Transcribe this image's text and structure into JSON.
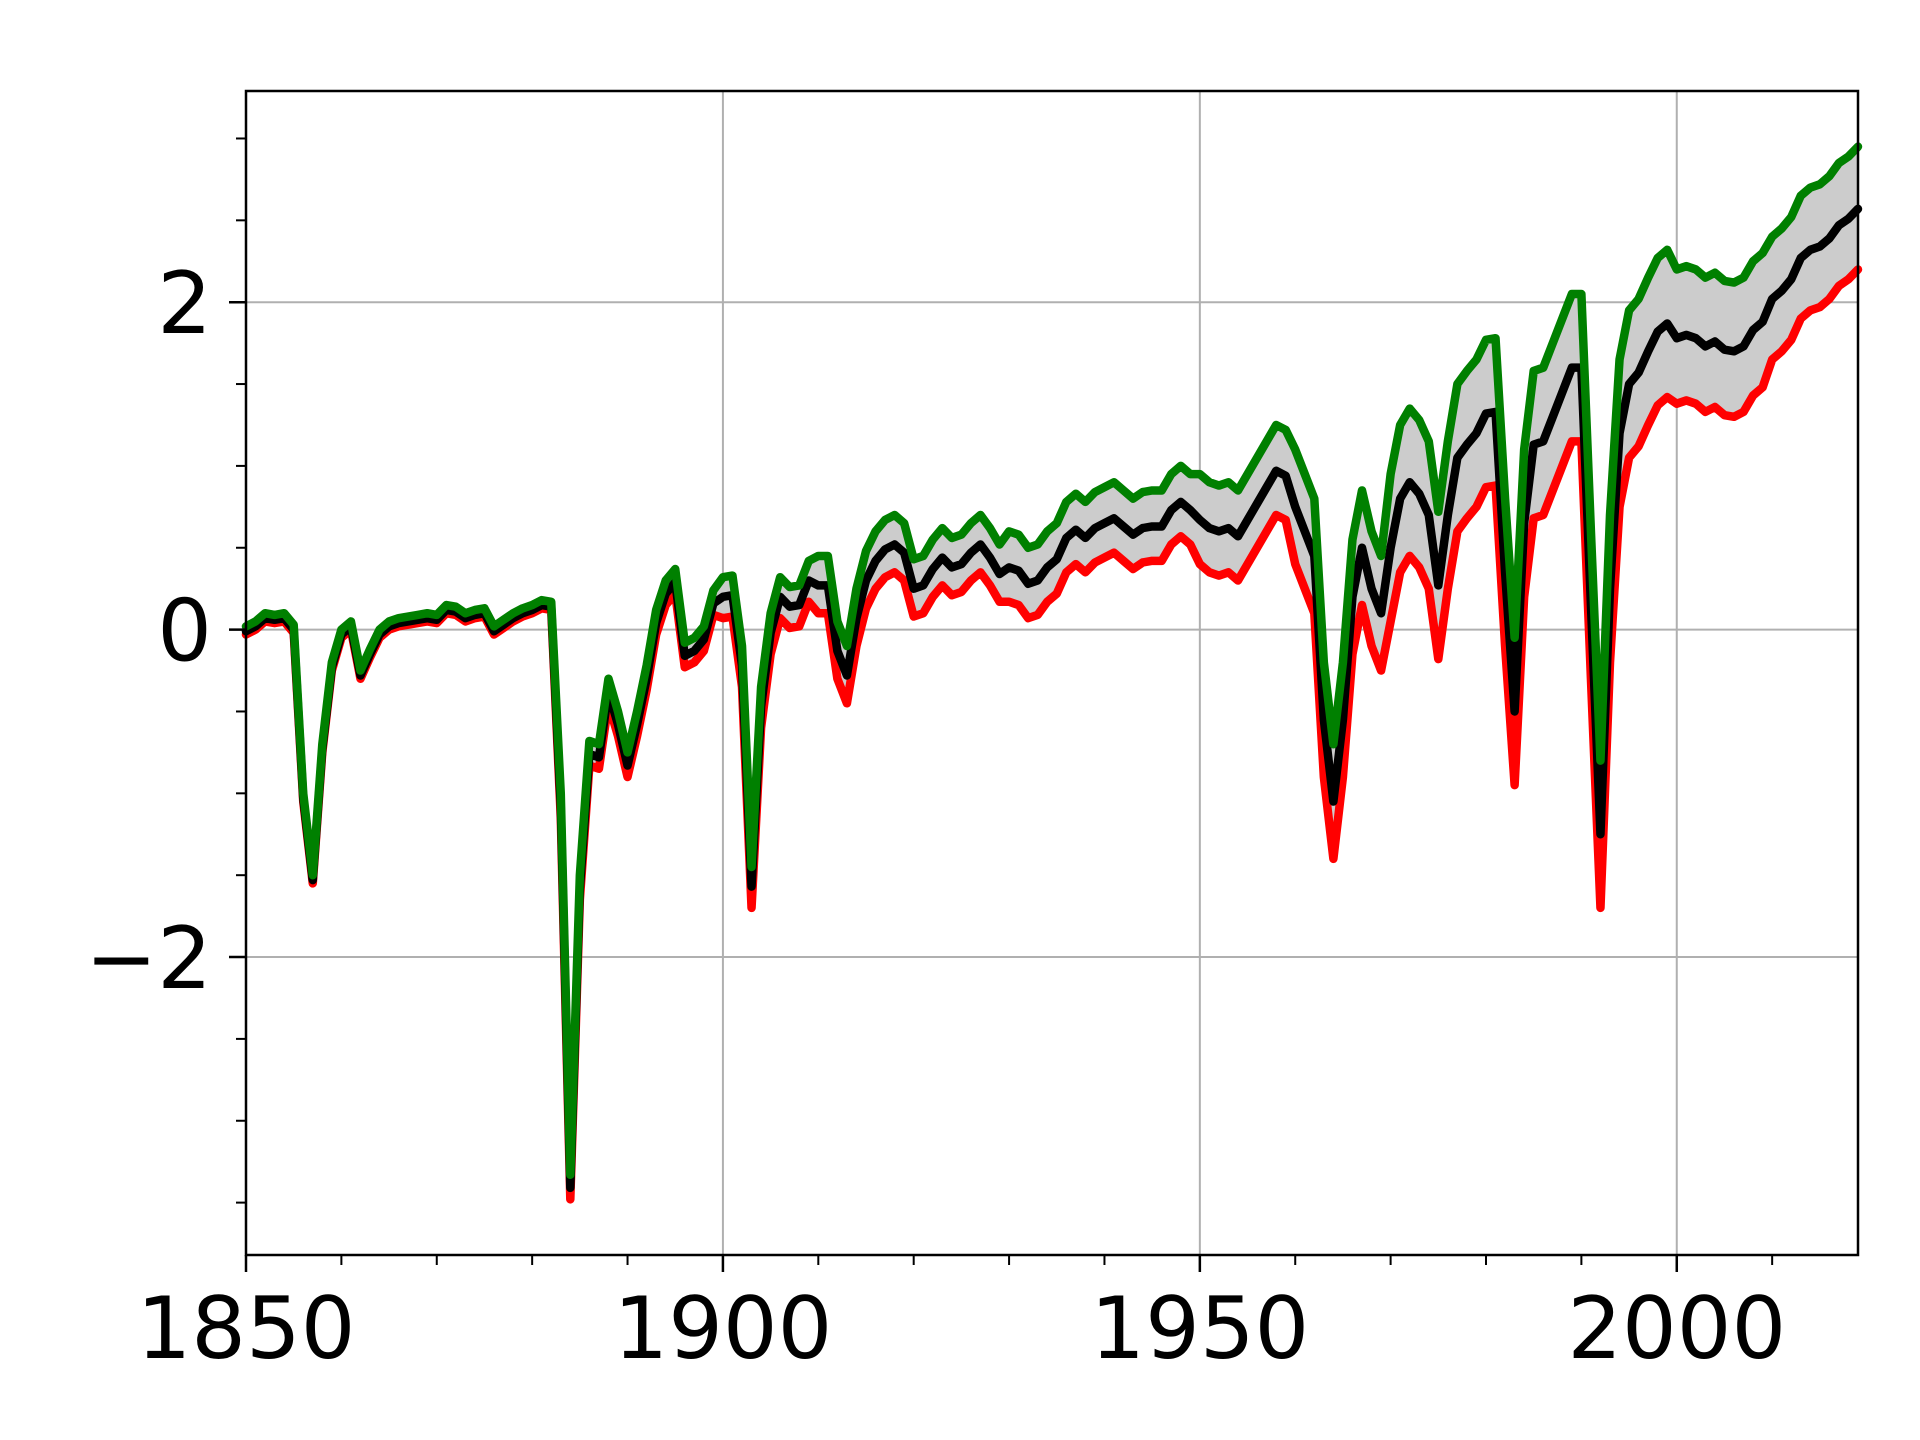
{
  "chart_data": {
    "type": "line",
    "x": [
      1850,
      1851,
      1852,
      1853,
      1854,
      1855,
      1856,
      1857,
      1858,
      1859,
      1860,
      1861,
      1862,
      1863,
      1864,
      1865,
      1866,
      1867,
      1868,
      1869,
      1870,
      1871,
      1872,
      1873,
      1874,
      1875,
      1876,
      1877,
      1878,
      1879,
      1880,
      1881,
      1882,
      1883,
      1884,
      1885,
      1886,
      1887,
      1888,
      1889,
      1890,
      1891,
      1892,
      1893,
      1894,
      1895,
      1896,
      1897,
      1898,
      1899,
      1900,
      1901,
      1902,
      1903,
      1904,
      1905,
      1906,
      1907,
      1908,
      1909,
      1910,
      1911,
      1912,
      1913,
      1914,
      1915,
      1916,
      1917,
      1918,
      1919,
      1920,
      1921,
      1922,
      1923,
      1924,
      1925,
      1926,
      1927,
      1928,
      1929,
      1930,
      1931,
      1932,
      1933,
      1934,
      1935,
      1936,
      1937,
      1938,
      1939,
      1940,
      1941,
      1942,
      1943,
      1944,
      1945,
      1946,
      1947,
      1948,
      1949,
      1950,
      1951,
      1952,
      1953,
      1954,
      1955,
      1956,
      1957,
      1958,
      1959,
      1960,
      1961,
      1962,
      1963,
      1964,
      1965,
      1966,
      1967,
      1968,
      1969,
      1970,
      1971,
      1972,
      1973,
      1974,
      1975,
      1976,
      1977,
      1978,
      1979,
      1980,
      1981,
      1982,
      1983,
      1984,
      1985,
      1986,
      1987,
      1988,
      1989,
      1990,
      1991,
      1992,
      1993,
      1994,
      1995,
      1996,
      1997,
      1998,
      1999,
      2000,
      2001,
      2002,
      2003,
      2004,
      2005,
      2006,
      2007,
      2008,
      2009,
      2010,
      2011,
      2012,
      2013,
      2014,
      2015,
      2016,
      2017,
      2018,
      2019
    ],
    "series": [
      {
        "color": "#ff0000",
        "values": [
          -0.03,
          0.0,
          0.05,
          0.04,
          0.05,
          -0.02,
          -1.05,
          -1.55,
          -0.75,
          -0.25,
          -0.05,
          0.0,
          -0.3,
          -0.17,
          -0.05,
          0.0,
          0.02,
          0.03,
          0.04,
          0.05,
          0.04,
          0.1,
          0.09,
          0.05,
          0.07,
          0.08,
          -0.03,
          0.01,
          0.05,
          0.08,
          0.1,
          0.13,
          0.12,
          -1.15,
          -3.48,
          -1.65,
          -0.83,
          -0.85,
          -0.45,
          -0.65,
          -0.9,
          -0.65,
          -0.37,
          -0.03,
          0.15,
          0.22,
          -0.23,
          -0.2,
          -0.13,
          0.09,
          0.07,
          0.08,
          -0.35,
          -1.7,
          -0.6,
          -0.15,
          0.07,
          0.01,
          0.02,
          0.17,
          0.1,
          0.1,
          -0.3,
          -0.45,
          -0.1,
          0.13,
          0.25,
          0.32,
          0.35,
          0.3,
          0.08,
          0.1,
          0.2,
          0.27,
          0.21,
          0.23,
          0.3,
          0.35,
          0.27,
          0.17,
          0.17,
          0.15,
          0.07,
          0.09,
          0.17,
          0.22,
          0.35,
          0.4,
          0.35,
          0.41,
          0.44,
          0.47,
          0.42,
          0.37,
          0.41,
          0.42,
          0.42,
          0.52,
          0.57,
          0.52,
          0.4,
          0.35,
          0.33,
          0.35,
          0.3,
          0.4,
          0.5,
          0.6,
          0.7,
          0.67,
          0.4,
          0.25,
          0.1,
          -0.9,
          -1.4,
          -0.9,
          -0.15,
          0.15,
          -0.1,
          -0.25,
          0.05,
          0.35,
          0.45,
          0.38,
          0.25,
          -0.18,
          0.25,
          0.6,
          0.68,
          0.75,
          0.87,
          0.88,
          -0.1,
          -0.95,
          0.2,
          0.68,
          0.7,
          0.85,
          1.0,
          1.15,
          1.15,
          -0.3,
          -1.7,
          -0.2,
          0.75,
          1.05,
          1.12,
          1.25,
          1.37,
          1.42,
          1.38,
          1.4,
          1.38,
          1.33,
          1.36,
          1.31,
          1.3,
          1.33,
          1.43,
          1.48,
          1.65,
          1.7,
          1.77,
          1.9,
          1.95,
          1.97,
          2.02,
          2.1,
          2.14,
          2.2
        ]
      },
      {
        "color": "#000000",
        "values": [
          -0.01,
          0.02,
          0.07,
          0.06,
          0.07,
          0.0,
          -1.03,
          -1.53,
          -0.73,
          -0.23,
          -0.03,
          0.02,
          -0.28,
          -0.15,
          -0.03,
          0.02,
          0.04,
          0.05,
          0.06,
          0.07,
          0.06,
          0.12,
          0.11,
          0.07,
          0.09,
          0.1,
          -0.01,
          0.03,
          0.07,
          0.1,
          0.12,
          0.15,
          0.14,
          -1.08,
          -3.41,
          -1.58,
          -0.76,
          -0.78,
          -0.38,
          -0.58,
          -0.83,
          -0.58,
          -0.3,
          0.04,
          0.22,
          0.29,
          -0.16,
          -0.13,
          -0.06,
          0.16,
          0.2,
          0.21,
          -0.22,
          -1.57,
          -0.47,
          -0.02,
          0.2,
          0.14,
          0.15,
          0.3,
          0.27,
          0.27,
          -0.13,
          -0.28,
          0.07,
          0.3,
          0.42,
          0.49,
          0.52,
          0.47,
          0.25,
          0.27,
          0.37,
          0.44,
          0.38,
          0.4,
          0.47,
          0.52,
          0.44,
          0.34,
          0.38,
          0.36,
          0.28,
          0.3,
          0.38,
          0.43,
          0.56,
          0.61,
          0.56,
          0.62,
          0.65,
          0.68,
          0.63,
          0.58,
          0.62,
          0.63,
          0.63,
          0.73,
          0.78,
          0.73,
          0.67,
          0.62,
          0.6,
          0.62,
          0.57,
          0.67,
          0.77,
          0.87,
          0.97,
          0.94,
          0.75,
          0.6,
          0.45,
          -0.55,
          -1.05,
          -0.55,
          0.2,
          0.5,
          0.25,
          0.1,
          0.5,
          0.8,
          0.9,
          0.83,
          0.7,
          0.27,
          0.7,
          1.05,
          1.13,
          1.2,
          1.32,
          1.33,
          0.35,
          -0.5,
          0.65,
          1.13,
          1.15,
          1.3,
          1.45,
          1.6,
          1.6,
          0.15,
          -1.25,
          0.25,
          1.2,
          1.5,
          1.57,
          1.7,
          1.82,
          1.87,
          1.78,
          1.8,
          1.78,
          1.73,
          1.76,
          1.71,
          1.7,
          1.73,
          1.83,
          1.88,
          2.02,
          2.07,
          2.14,
          2.27,
          2.32,
          2.34,
          2.39,
          2.47,
          2.51,
          2.57
        ]
      },
      {
        "color": "#008000",
        "values": [
          0.02,
          0.05,
          0.1,
          0.09,
          0.1,
          0.03,
          -1.0,
          -1.5,
          -0.7,
          -0.2,
          0.0,
          0.05,
          -0.25,
          -0.12,
          0.0,
          0.05,
          0.07,
          0.08,
          0.09,
          0.1,
          0.09,
          0.15,
          0.14,
          0.1,
          0.12,
          0.13,
          0.02,
          0.06,
          0.1,
          0.13,
          0.15,
          0.18,
          0.17,
          -1.0,
          -3.33,
          -1.5,
          -0.68,
          -0.7,
          -0.3,
          -0.5,
          -0.75,
          -0.5,
          -0.22,
          0.12,
          0.3,
          0.37,
          -0.08,
          -0.05,
          0.02,
          0.24,
          0.32,
          0.33,
          -0.1,
          -1.45,
          -0.35,
          0.1,
          0.32,
          0.26,
          0.27,
          0.42,
          0.45,
          0.45,
          0.05,
          -0.1,
          0.25,
          0.48,
          0.6,
          0.67,
          0.7,
          0.65,
          0.43,
          0.45,
          0.55,
          0.62,
          0.56,
          0.58,
          0.65,
          0.7,
          0.62,
          0.52,
          0.6,
          0.58,
          0.5,
          0.52,
          0.6,
          0.65,
          0.78,
          0.83,
          0.78,
          0.84,
          0.87,
          0.9,
          0.85,
          0.8,
          0.84,
          0.85,
          0.85,
          0.95,
          1.0,
          0.95,
          0.95,
          0.9,
          0.88,
          0.9,
          0.85,
          0.95,
          1.05,
          1.15,
          1.25,
          1.22,
          1.1,
          0.95,
          0.8,
          -0.2,
          -0.7,
          -0.2,
          0.55,
          0.85,
          0.6,
          0.45,
          0.95,
          1.25,
          1.35,
          1.28,
          1.15,
          0.72,
          1.15,
          1.5,
          1.58,
          1.65,
          1.77,
          1.78,
          0.8,
          -0.05,
          1.1,
          1.58,
          1.6,
          1.75,
          1.9,
          2.05,
          2.05,
          0.6,
          -0.8,
          0.7,
          1.65,
          1.95,
          2.02,
          2.15,
          2.27,
          2.32,
          2.2,
          2.22,
          2.2,
          2.15,
          2.18,
          2.13,
          2.12,
          2.15,
          2.25,
          2.3,
          2.4,
          2.45,
          2.52,
          2.65,
          2.7,
          2.72,
          2.77,
          2.85,
          2.89,
          2.95
        ]
      }
    ],
    "fill_between": {
      "series": [
        0,
        2
      ],
      "color": "#cccccc"
    },
    "xlim": [
      1850,
      2019
    ],
    "ylim": [
      -3.82,
      3.29
    ],
    "xticks": [
      1850,
      1900,
      1950,
      2000
    ],
    "xminorticks": [
      1860,
      1870,
      1880,
      1890,
      1910,
      1920,
      1930,
      1940,
      1960,
      1970,
      1980,
      1990,
      2010
    ],
    "yticks": [
      {
        "value": -2,
        "label": "−2"
      },
      0,
      2
    ],
    "yminorticks": [
      -3.5,
      -3,
      -2.5,
      -1.5,
      -1,
      -0.5,
      0.5,
      1,
      1.5,
      2.5,
      3
    ],
    "grid": true
  }
}
